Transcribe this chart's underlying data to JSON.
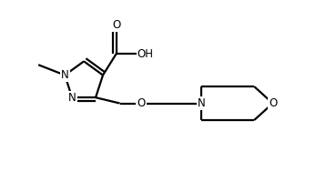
{
  "background": "#ffffff",
  "line_color": "#000000",
  "line_width": 1.6,
  "font_size": 8.5,
  "figsize": [
    3.58,
    2.0
  ],
  "dpi": 100,
  "xlim": [
    0,
    10
  ],
  "ylim": [
    0,
    5.6
  ]
}
